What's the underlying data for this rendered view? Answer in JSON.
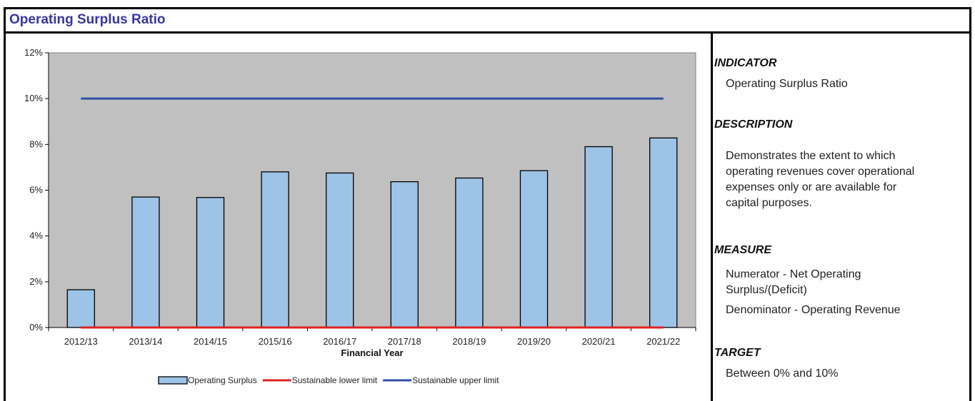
{
  "page_title": "Operating Surplus Ratio",
  "chart_data": {
    "type": "bar",
    "xlabel": "Financial Year",
    "ylabel": "",
    "ylim": [
      0,
      12
    ],
    "yticks": [
      "0%",
      "2%",
      "4%",
      "6%",
      "8%",
      "10%",
      "12%"
    ],
    "categories": [
      "2012/13",
      "2013/14",
      "2014/15",
      "2015/16",
      "2016/17",
      "2017/18",
      "2018/19",
      "2019/20",
      "2020/21",
      "2021/22"
    ],
    "series": [
      {
        "name": "Operating Surplus",
        "kind": "bar",
        "color": "#9dc3e6",
        "values": [
          1.65,
          5.7,
          5.68,
          6.8,
          6.75,
          6.37,
          6.53,
          6.85,
          7.9,
          8.28
        ]
      },
      {
        "name": "Sustainable lower limit",
        "kind": "line",
        "color": "#e02020",
        "values": [
          0,
          0,
          0,
          0,
          0,
          0,
          0,
          0,
          0,
          0
        ]
      },
      {
        "name": "Sustainable upper limit",
        "kind": "line",
        "color": "#2e4fa3",
        "values": [
          10,
          10,
          10,
          10,
          10,
          10,
          10,
          10,
          10,
          10
        ]
      }
    ],
    "plot_background": "#c0c0c0",
    "grid": false,
    "legend_position": "bottom"
  },
  "info": {
    "indicator": {
      "heading": "INDICATOR",
      "text": "Operating Surplus Ratio"
    },
    "description": {
      "heading": "DESCRIPTION",
      "lines": [
        "Demonstrates the extent to which",
        "operating revenues cover operational",
        "expenses only or are available for",
        "capital purposes."
      ]
    },
    "measure": {
      "heading": "MEASURE",
      "lines": [
        "Numerator - Net Operating",
        "Surplus/(Deficit)"
      ],
      "denominator": "Denominator - Operating Revenue"
    },
    "target": {
      "heading": "TARGET",
      "text": "Between 0% and 10%"
    }
  }
}
